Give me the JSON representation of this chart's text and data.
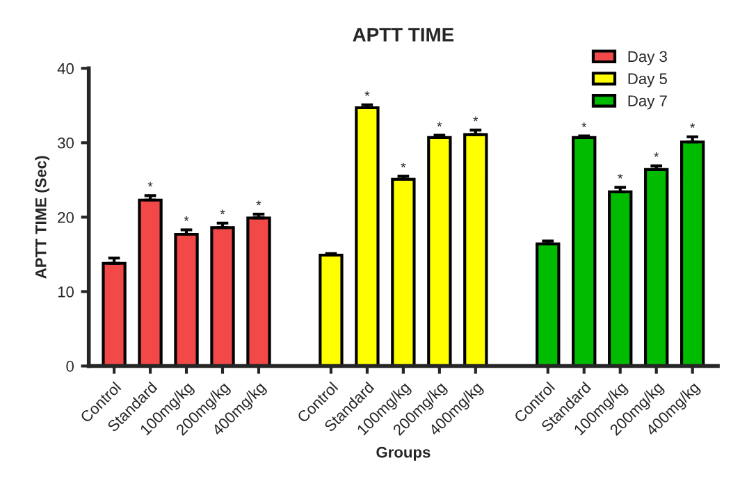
{
  "chart_data": {
    "type": "bar",
    "title": "APTT TIME",
    "xlabel": "Groups",
    "ylabel": "APTT TIME (Sec)",
    "categories": [
      "Control",
      "Standard",
      "100mg/kg",
      "200mg/kg",
      "400mg/kg",
      null,
      "Control",
      "Standard",
      "100mg/kg",
      "200mg/kg",
      "400mg/kg",
      null,
      "Control",
      "Standard",
      "100mg/kg",
      "200mg/kg",
      "400mg/kg"
    ],
    "series": [
      {
        "name": "Day 3",
        "color": "#f24848",
        "values": [
          13.8,
          22.3,
          17.7,
          18.6,
          19.9,
          null,
          null,
          null,
          null,
          null,
          null,
          null,
          null,
          null,
          null,
          null,
          null
        ],
        "errors": [
          0.7,
          0.6,
          0.6,
          0.6,
          0.5,
          null,
          null,
          null,
          null,
          null,
          null,
          null,
          null,
          null,
          null,
          null,
          null
        ],
        "value_labels": [
          null,
          "*",
          "*",
          "*",
          "*",
          null,
          null,
          null,
          null,
          null,
          null,
          null,
          null,
          null,
          null,
          null,
          null
        ]
      },
      {
        "name": "Day 5",
        "color": "#ffff00",
        "values": [
          null,
          null,
          null,
          null,
          null,
          null,
          14.9,
          34.7,
          25.1,
          30.7,
          31.1,
          null,
          null,
          null,
          null,
          null,
          null
        ],
        "errors": [
          null,
          null,
          null,
          null,
          null,
          null,
          0.2,
          0.4,
          0.4,
          0.3,
          0.6,
          null,
          null,
          null,
          null,
          null,
          null
        ],
        "value_labels": [
          null,
          null,
          null,
          null,
          null,
          null,
          null,
          "*",
          "*",
          "*",
          "*",
          null,
          null,
          null,
          null,
          null,
          null
        ]
      },
      {
        "name": "Day 7",
        "color": "#00bb00",
        "values": [
          null,
          null,
          null,
          null,
          null,
          null,
          null,
          null,
          null,
          null,
          null,
          null,
          16.4,
          30.7,
          23.4,
          26.4,
          30.1
        ],
        "errors": [
          null,
          null,
          null,
          null,
          null,
          null,
          null,
          null,
          null,
          null,
          null,
          null,
          0.4,
          0.2,
          0.6,
          0.5,
          0.7
        ],
        "value_labels": [
          null,
          null,
          null,
          null,
          null,
          null,
          null,
          null,
          null,
          null,
          null,
          null,
          null,
          "*",
          "*",
          "*",
          "*"
        ]
      }
    ],
    "ylim": [
      0,
      40
    ],
    "yticks": [
      0,
      10,
      20,
      30,
      40
    ],
    "grid": false,
    "legend": "top right"
  }
}
